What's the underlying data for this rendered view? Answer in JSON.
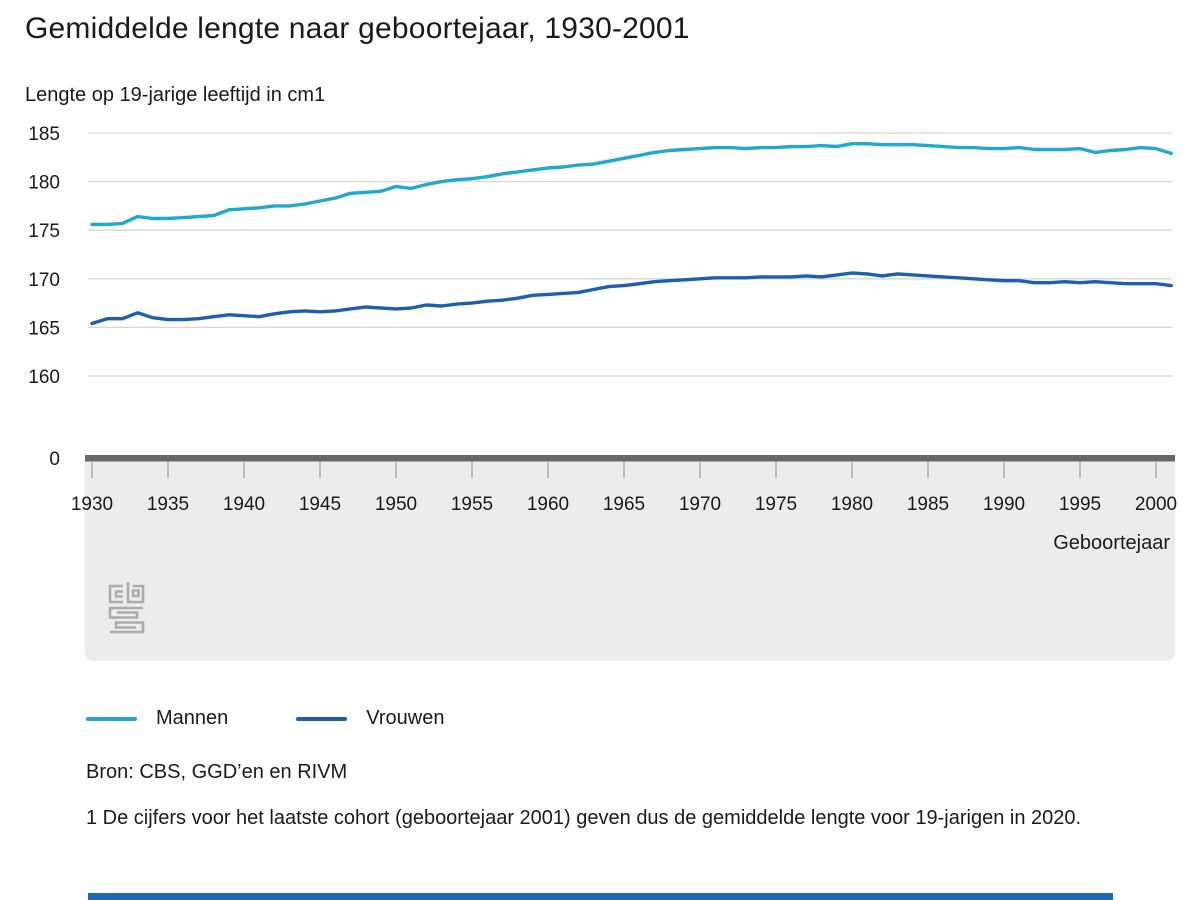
{
  "title": "Gemiddelde lengte naar geboortejaar, 1930-2001",
  "subtitle": "Lengte op 19-jarige leeftijd in cm1",
  "xlabel": "Geboortejaar",
  "source": "Bron: CBS, GGD’en en RIVM",
  "footnote": "1 De cijfers voor het laatste cohort (geboortejaar 2001) geven dus de gemiddelde lengte voor 19-jarigen in 2020.",
  "legend": [
    {
      "label": "Mannen",
      "color": "#21a8ce"
    },
    {
      "label": "Vrouwen",
      "color": "#1d5fae"
    }
  ],
  "colors": {
    "mannen": "#21a8ce",
    "vrouwen": "#1d5fae",
    "gridline": "#d6d6d6",
    "axis_bar": "#696969",
    "plot_lower_bg": "#ececec",
    "tick": "#bdbdbd",
    "text": "#1a1a1a",
    "logo": "#ababab",
    "bottom_bar": "#2068b2"
  },
  "chart_data": {
    "type": "line",
    "title": "Gemiddelde lengte naar geboortejaar, 1930-2001",
    "ylabel": "Lengte op 19-jarige leeftijd in cm1",
    "xlabel": "Geboortejaar",
    "grid": true,
    "legend_position": "bottom",
    "broken_y_axis": true,
    "ylim": [
      160,
      185
    ],
    "yticks": [
      185,
      180,
      175,
      170,
      165,
      160
    ],
    "y_zero_label": "0",
    "xticks": [
      1930,
      1935,
      1940,
      1945,
      1950,
      1955,
      1960,
      1965,
      1970,
      1975,
      1980,
      1985,
      1990,
      1995,
      2000
    ],
    "x_start": 1930,
    "x_end": 2001,
    "series": [
      {
        "name": "Mannen",
        "color": "#21a8ce",
        "values": [
          175.6,
          175.6,
          175.7,
          176.4,
          176.2,
          176.2,
          176.3,
          176.4,
          176.5,
          177.1,
          177.2,
          177.3,
          177.5,
          177.5,
          177.7,
          178.0,
          178.3,
          178.8,
          178.9,
          179.0,
          179.5,
          179.3,
          179.7,
          180.0,
          180.2,
          180.3,
          180.5,
          180.8,
          181.0,
          181.2,
          181.4,
          181.5,
          181.7,
          181.8,
          182.1,
          182.4,
          182.7,
          183.0,
          183.2,
          183.3,
          183.4,
          183.5,
          183.5,
          183.4,
          183.5,
          183.5,
          183.6,
          183.6,
          183.7,
          183.6,
          183.9,
          183.9,
          183.8,
          183.8,
          183.8,
          183.7,
          183.6,
          183.5,
          183.5,
          183.4,
          183.4,
          183.5,
          183.3,
          183.3,
          183.3,
          183.4,
          183.0,
          183.2,
          183.3,
          183.5,
          183.4,
          182.9
        ]
      },
      {
        "name": "Vrouwen",
        "color": "#1d5fae",
        "values": [
          165.4,
          165.9,
          165.9,
          166.5,
          166.0,
          165.8,
          165.8,
          165.9,
          166.1,
          166.3,
          166.2,
          166.1,
          166.4,
          166.6,
          166.7,
          166.6,
          166.7,
          166.9,
          167.1,
          167.0,
          166.9,
          167.0,
          167.3,
          167.2,
          167.4,
          167.5,
          167.7,
          167.8,
          168.0,
          168.3,
          168.4,
          168.5,
          168.6,
          168.9,
          169.2,
          169.3,
          169.5,
          169.7,
          169.8,
          169.9,
          170.0,
          170.1,
          170.1,
          170.1,
          170.2,
          170.2,
          170.2,
          170.3,
          170.2,
          170.4,
          170.6,
          170.5,
          170.3,
          170.5,
          170.4,
          170.3,
          170.2,
          170.1,
          170.0,
          169.9,
          169.8,
          169.8,
          169.6,
          169.6,
          169.7,
          169.6,
          169.7,
          169.6,
          169.5,
          169.5,
          169.5,
          169.3
        ]
      }
    ]
  }
}
